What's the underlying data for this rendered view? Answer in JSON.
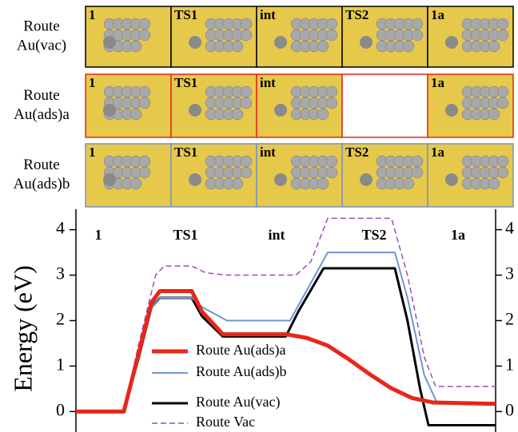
{
  "panels": {
    "rows": [
      {
        "label": [
          "Route",
          "Au(vac)"
        ],
        "border": "#000000",
        "cells": [
          "1",
          "TS1",
          "int",
          "TS2",
          "1a"
        ]
      },
      {
        "label": [
          "Route",
          "Au(ads)a"
        ],
        "border": "#e8261a",
        "cells": [
          "1",
          "TS1",
          "int",
          null,
          "1a"
        ]
      },
      {
        "label": [
          "Route",
          "Au(ads)b"
        ],
        "border": "#7a8fc4",
        "cells": [
          "1",
          "TS1",
          "int",
          "TS2",
          "1a"
        ]
      }
    ]
  },
  "chart_data": {
    "type": "line",
    "ylabel": "Energy (eV)",
    "annotations": [
      "1",
      "TS1",
      "int",
      "TS2",
      "1a"
    ],
    "xlim": [
      0,
      10
    ],
    "ylim": [
      -0.45,
      4.45
    ],
    "yticks": [
      0,
      1,
      2,
      3,
      4
    ],
    "series": [
      {
        "name": "Route Au(ads)a",
        "color": "#e8261a",
        "width": 5,
        "dash": false,
        "x": [
          0,
          1.14,
          1.5,
          1.8,
          2.0,
          2.76,
          3.0,
          3.5,
          5.0,
          5.5,
          6.0,
          6.5,
          7.0,
          7.5,
          8.0,
          8.5,
          10
        ],
        "values": [
          0,
          0,
          1.3,
          2.4,
          2.65,
          2.65,
          2.2,
          1.7,
          1.7,
          1.62,
          1.45,
          1.15,
          0.82,
          0.52,
          0.3,
          0.2,
          0.17
        ]
      },
      {
        "name": "Route Au(ads)b",
        "color": "#6f93d8",
        "width": 2,
        "dash": false,
        "x": [
          0,
          1.14,
          1.5,
          1.8,
          2.0,
          2.76,
          3.0,
          3.6,
          5.1,
          5.4,
          6.0,
          7.6,
          7.9,
          8.3,
          8.6,
          10
        ],
        "values": [
          0,
          0,
          1.2,
          2.3,
          2.5,
          2.5,
          2.3,
          2.0,
          2.0,
          2.5,
          3.5,
          3.5,
          2.5,
          0.8,
          0.2,
          0.2
        ]
      },
      {
        "name": "Route Au(vac)",
        "color": "#000000",
        "width": 3,
        "dash": false,
        "x": [
          0,
          1.14,
          1.5,
          1.8,
          2.0,
          2.76,
          3.0,
          3.5,
          5.0,
          5.3,
          5.9,
          7.6,
          7.9,
          8.2,
          8.4,
          10
        ],
        "values": [
          0,
          0,
          1.2,
          2.3,
          2.5,
          2.5,
          2.1,
          1.65,
          1.65,
          2.2,
          3.15,
          3.15,
          2.0,
          0.5,
          -0.3,
          -0.3
        ]
      },
      {
        "name": "Route Vac",
        "color": "#9b4fb5",
        "width": 1.5,
        "dash": true,
        "x": [
          0,
          1.14,
          1.5,
          1.9,
          2.1,
          2.76,
          3.1,
          3.6,
          5.24,
          5.6,
          6.0,
          7.52,
          7.9,
          8.3,
          8.57,
          10
        ],
        "values": [
          0,
          0,
          1.5,
          3.0,
          3.2,
          3.2,
          3.05,
          3.0,
          3.0,
          3.3,
          4.25,
          4.25,
          3.0,
          1.2,
          0.55,
          0.55
        ]
      }
    ]
  }
}
